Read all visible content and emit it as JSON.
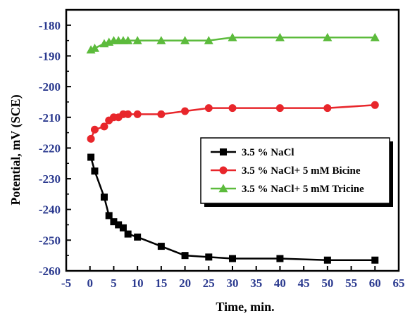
{
  "chart_data": {
    "type": "line",
    "title": "",
    "xlabel": "Time, min.",
    "ylabel": "Potential, mV (SCE)",
    "xlim": [
      -5,
      65
    ],
    "ylim": [
      -260,
      -175
    ],
    "xticks": [
      -5,
      0,
      5,
      10,
      15,
      20,
      25,
      30,
      35,
      40,
      45,
      50,
      55,
      60,
      65
    ],
    "yticks": [
      -180,
      -190,
      -200,
      -210,
      -220,
      -230,
      -240,
      -250,
      -260
    ],
    "grid": false,
    "legend_position": "center-right",
    "series": [
      {
        "name": "3.5 % NaCl",
        "color": "#000000",
        "marker": "square",
        "x": [
          0.2,
          1,
          3,
          4,
          5,
          6,
          7,
          8,
          10,
          15,
          20,
          25,
          30,
          40,
          50,
          60
        ],
        "y": [
          -223,
          -227.5,
          -236,
          -242,
          -244,
          -245,
          -246,
          -248,
          -249,
          -252,
          -255,
          -255.5,
          -256,
          -256,
          -256.5,
          -256.5
        ]
      },
      {
        "name": "3.5 % NaCl+ 5 mM Bicine",
        "color": "#e8262b",
        "marker": "circle",
        "x": [
          0.2,
          1,
          3,
          4,
          5,
          6,
          7,
          8,
          10,
          15,
          20,
          25,
          30,
          40,
          50,
          60
        ],
        "y": [
          -217,
          -214,
          -213,
          -211,
          -210,
          -210,
          -209,
          -209,
          -209,
          -209,
          -208,
          -207,
          -207,
          -207,
          -207,
          -206
        ]
      },
      {
        "name": "3.5 % NaCl+ 5 mM Tricine",
        "color": "#5cbb3c",
        "marker": "triangle",
        "x": [
          0.2,
          1,
          3,
          4,
          5,
          6,
          7,
          8,
          10,
          15,
          20,
          25,
          30,
          40,
          50,
          60
        ],
        "y": [
          -188,
          -187.5,
          -186,
          -185.5,
          -185,
          -185,
          -185,
          -185,
          -185,
          -185,
          -185,
          -185,
          -184,
          -184,
          -184,
          -184
        ]
      }
    ]
  }
}
